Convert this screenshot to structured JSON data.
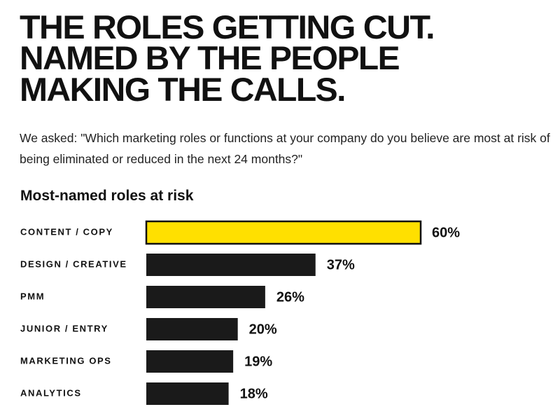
{
  "chart_data": {
    "type": "bar",
    "title": [
      "THE ROLES GETTING CUT.",
      "NAMED BY THE PEOPLE",
      "MAKING THE CALLS."
    ],
    "subtitle": "We asked: \"Which marketing roles or functions at your company do you believe are most at risk of being eliminated or reduced in the next 24 months?\"",
    "chart_title": "Most-named roles at risk",
    "categories": [
      "CONTENT / COPY",
      "DESIGN / CREATIVE",
      "PMM",
      "JUNIOR / ENTRY",
      "MARKETING OPS",
      "ANALYTICS"
    ],
    "values": [
      60,
      37,
      26,
      20,
      19,
      18
    ],
    "value_labels": [
      "60%",
      "37%",
      "26%",
      "20%",
      "19%",
      "18%"
    ],
    "colors": [
      "#ffe000",
      "#1a1a1a",
      "#1a1a1a",
      "#1a1a1a",
      "#1a1a1a",
      "#1a1a1a"
    ]
  }
}
